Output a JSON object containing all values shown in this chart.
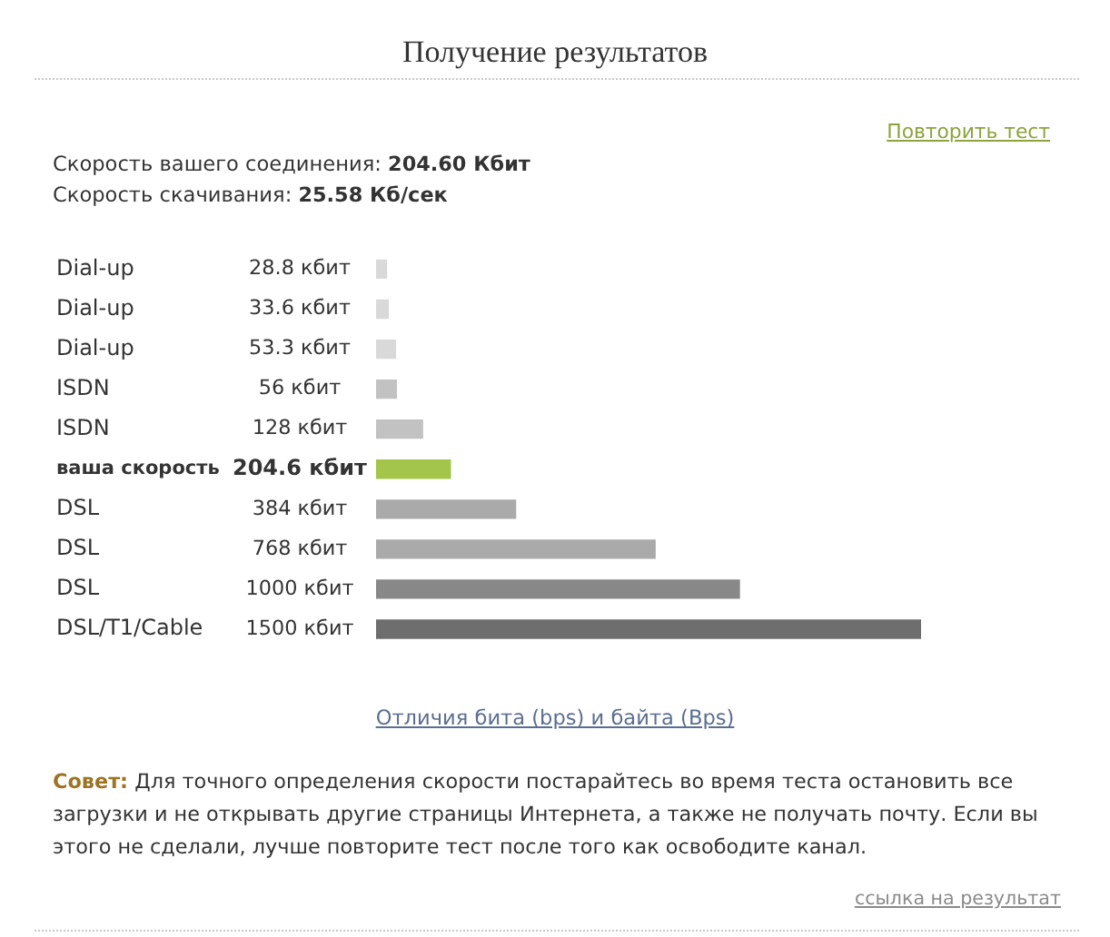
{
  "chart_data": {
    "type": "bar",
    "orientation": "horizontal",
    "title": "Получение результатов",
    "categories": [
      "Dial-up",
      "Dial-up",
      "Dial-up",
      "ISDN",
      "ISDN",
      "ваша скорость",
      "DSL",
      "DSL",
      "DSL",
      "DSL/T1/Cable"
    ],
    "values": [
      28.8,
      33.6,
      53.3,
      56,
      128,
      204.6,
      384,
      768,
      1000,
      1500
    ],
    "colors": [
      "#d9d9d9",
      "#d9d9d9",
      "#d9d9d9",
      "#c2c2c2",
      "#c2c2c2",
      "#a3c64a",
      "#aaaaaa",
      "#aaaaaa",
      "#888888",
      "#6e6e6e"
    ],
    "value_labels": [
      "28.8 кбит",
      "33.6 кбит",
      "53.3 кбит",
      "56 кбит",
      "128 кбит",
      "204.6 кбит",
      "384 кбит",
      "768 кбит",
      "1000 кбит",
      "1500 кбит"
    ],
    "tick_labels": "y",
    "annotations": [
      "Повторить тест",
      "Скорость вашего соединения:",
      "204.60 Кбит",
      "Скорость скачивания:",
      "25.58 Кб/сек",
      "Отличия бита (bps) и байта (Bps)",
      "Совет: Для точного определения скорости постарайтесь во время теста остановить все загрузки и не открывать другие страницы Интернета, а также не получать почту. Если вы этого не сделали, лучше повторите тест после того как освободите канал.",
      "ссылка на результат"
    ]
  }
}
